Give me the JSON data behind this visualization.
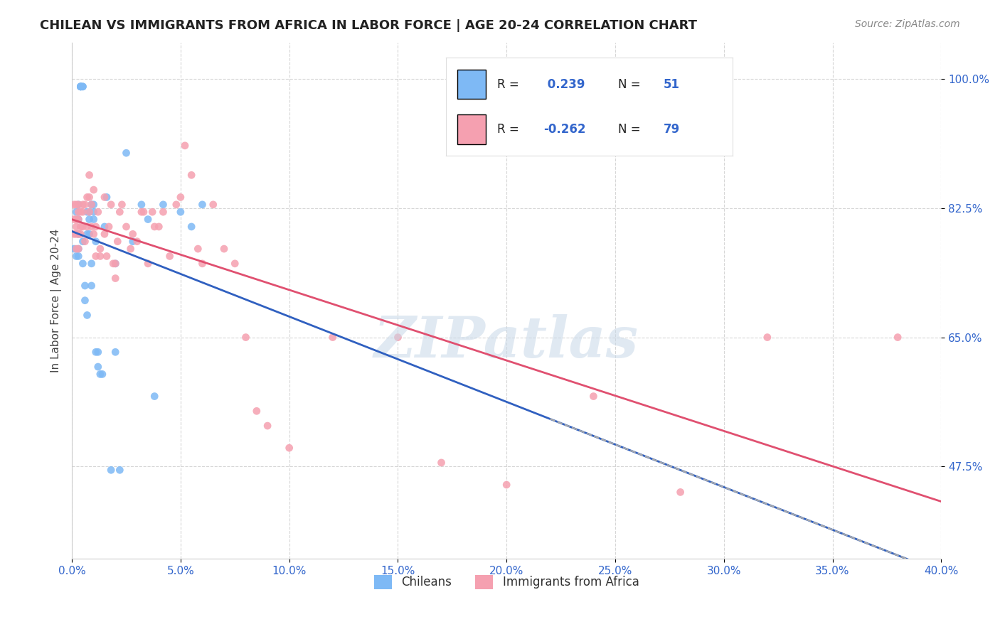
{
  "title": "CHILEAN VS IMMIGRANTS FROM AFRICA IN LABOR FORCE | AGE 20-24 CORRELATION CHART",
  "source": "Source: ZipAtlas.com",
  "ylabel": "In Labor Force | Age 20-24",
  "legend_label1": "Chileans",
  "legend_label2": "Immigrants from Africa",
  "color_blue": "#7EB9F5",
  "color_pink": "#F5A0B0",
  "color_blue_line": "#3060C0",
  "color_pink_line": "#E05070",
  "color_dashed_line": "#AAAAAA",
  "background_color": "#FFFFFF",
  "watermark_text": "ZIPatlas",
  "x_min": 0.0,
  "x_max": 0.4,
  "y_min": 0.35,
  "y_max": 1.05,
  "chilean_x": [
    0.001,
    0.002,
    0.002,
    0.003,
    0.003,
    0.003,
    0.003,
    0.003,
    0.004,
    0.004,
    0.004,
    0.004,
    0.005,
    0.005,
    0.005,
    0.005,
    0.006,
    0.006,
    0.007,
    0.007,
    0.007,
    0.008,
    0.008,
    0.008,
    0.009,
    0.009,
    0.009,
    0.01,
    0.01,
    0.01,
    0.011,
    0.011,
    0.012,
    0.012,
    0.013,
    0.014,
    0.015,
    0.016,
    0.018,
    0.02,
    0.02,
    0.022,
    0.025,
    0.028,
    0.032,
    0.035,
    0.038,
    0.042,
    0.05,
    0.055,
    0.06
  ],
  "chilean_y": [
    0.77,
    0.82,
    0.76,
    0.83,
    0.81,
    0.79,
    0.77,
    0.76,
    0.99,
    0.99,
    0.99,
    0.99,
    0.99,
    0.99,
    0.78,
    0.75,
    0.7,
    0.72,
    0.82,
    0.79,
    0.68,
    0.82,
    0.79,
    0.81,
    0.75,
    0.72,
    0.83,
    0.82,
    0.83,
    0.81,
    0.78,
    0.63,
    0.63,
    0.61,
    0.6,
    0.6,
    0.8,
    0.84,
    0.47,
    0.63,
    0.75,
    0.47,
    0.9,
    0.78,
    0.83,
    0.81,
    0.57,
    0.83,
    0.82,
    0.8,
    0.83
  ],
  "africa_x": [
    0.001,
    0.001,
    0.001,
    0.002,
    0.002,
    0.002,
    0.002,
    0.002,
    0.003,
    0.003,
    0.003,
    0.003,
    0.003,
    0.004,
    0.004,
    0.004,
    0.005,
    0.005,
    0.005,
    0.006,
    0.006,
    0.007,
    0.007,
    0.008,
    0.008,
    0.008,
    0.009,
    0.009,
    0.01,
    0.01,
    0.011,
    0.011,
    0.012,
    0.013,
    0.013,
    0.015,
    0.015,
    0.016,
    0.017,
    0.018,
    0.019,
    0.02,
    0.02,
    0.021,
    0.022,
    0.023,
    0.025,
    0.027,
    0.028,
    0.03,
    0.032,
    0.033,
    0.035,
    0.037,
    0.038,
    0.04,
    0.042,
    0.045,
    0.048,
    0.05,
    0.052,
    0.055,
    0.058,
    0.06,
    0.065,
    0.07,
    0.075,
    0.08,
    0.085,
    0.09,
    0.1,
    0.12,
    0.15,
    0.17,
    0.2,
    0.24,
    0.28,
    0.32,
    0.38
  ],
  "africa_y": [
    0.83,
    0.81,
    0.79,
    0.83,
    0.81,
    0.8,
    0.79,
    0.77,
    0.83,
    0.82,
    0.81,
    0.79,
    0.77,
    0.82,
    0.8,
    0.79,
    0.83,
    0.82,
    0.8,
    0.83,
    0.78,
    0.84,
    0.8,
    0.87,
    0.84,
    0.82,
    0.83,
    0.8,
    0.85,
    0.79,
    0.8,
    0.76,
    0.82,
    0.77,
    0.76,
    0.84,
    0.79,
    0.76,
    0.8,
    0.83,
    0.75,
    0.75,
    0.73,
    0.78,
    0.82,
    0.83,
    0.8,
    0.77,
    0.79,
    0.78,
    0.82,
    0.82,
    0.75,
    0.82,
    0.8,
    0.8,
    0.82,
    0.76,
    0.83,
    0.84,
    0.91,
    0.87,
    0.77,
    0.75,
    0.83,
    0.77,
    0.75,
    0.65,
    0.55,
    0.53,
    0.5,
    0.65,
    0.65,
    0.48,
    0.45,
    0.57,
    0.44,
    0.65,
    0.65
  ]
}
